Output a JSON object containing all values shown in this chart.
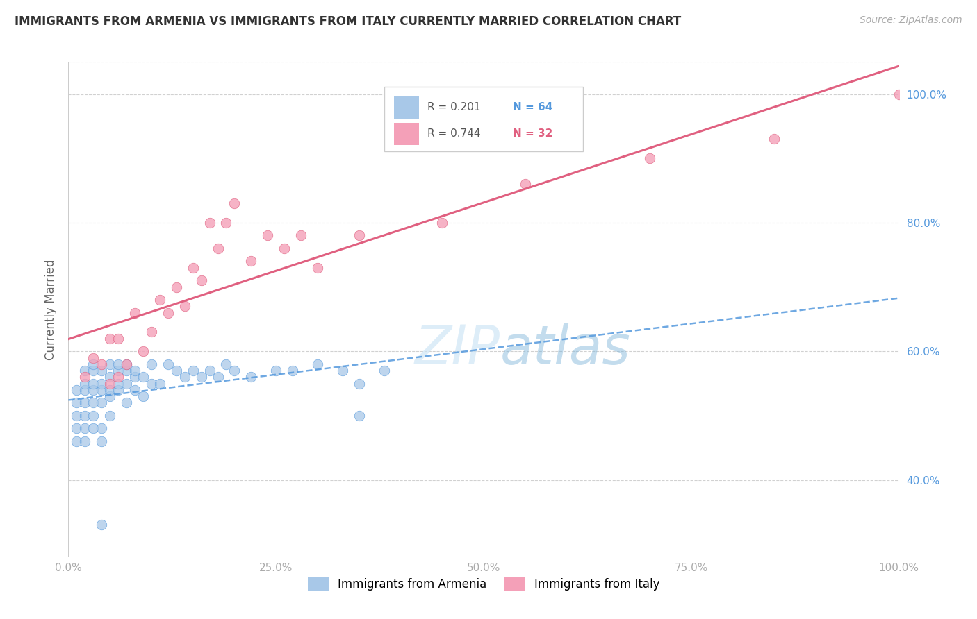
{
  "title": "IMMIGRANTS FROM ARMENIA VS IMMIGRANTS FROM ITALY CURRENTLY MARRIED CORRELATION CHART",
  "source": "Source: ZipAtlas.com",
  "ylabel": "Currently Married",
  "legend_label1": "Immigrants from Armenia",
  "legend_label2": "Immigrants from Italy",
  "legend_r1": "R = 0.201",
  "legend_n1": "N = 64",
  "legend_r2": "R = 0.744",
  "legend_n2": "N = 32",
  "color_armenia": "#a8c8e8",
  "color_italy": "#f4a0b8",
  "color_line_armenia": "#5599dd",
  "color_line_italy": "#e06080",
  "xlim": [
    0.0,
    1.0
  ],
  "ylim": [
    0.28,
    1.05
  ],
  "yticks": [
    0.4,
    0.6,
    0.8,
    1.0
  ],
  "ytick_labels": [
    "40.0%",
    "60.0%",
    "80.0%",
    "100.0%"
  ],
  "xticks": [
    0.0,
    0.25,
    0.5,
    0.75,
    1.0
  ],
  "xtick_labels": [
    "0.0%",
    "25.0%",
    "50.0%",
    "75.0%",
    "100.0%"
  ],
  "armenia_x": [
    0.01,
    0.01,
    0.01,
    0.01,
    0.01,
    0.02,
    0.02,
    0.02,
    0.02,
    0.02,
    0.02,
    0.02,
    0.03,
    0.03,
    0.03,
    0.03,
    0.03,
    0.03,
    0.03,
    0.04,
    0.04,
    0.04,
    0.04,
    0.04,
    0.04,
    0.05,
    0.05,
    0.05,
    0.05,
    0.05,
    0.06,
    0.06,
    0.06,
    0.06,
    0.07,
    0.07,
    0.07,
    0.07,
    0.08,
    0.08,
    0.08,
    0.09,
    0.09,
    0.1,
    0.1,
    0.11,
    0.12,
    0.13,
    0.14,
    0.15,
    0.16,
    0.17,
    0.18,
    0.19,
    0.2,
    0.22,
    0.25,
    0.27,
    0.3,
    0.33,
    0.35,
    0.38,
    0.04,
    0.35
  ],
  "armenia_y": [
    0.5,
    0.52,
    0.54,
    0.46,
    0.48,
    0.5,
    0.52,
    0.54,
    0.46,
    0.48,
    0.55,
    0.57,
    0.5,
    0.52,
    0.54,
    0.55,
    0.57,
    0.58,
    0.48,
    0.52,
    0.54,
    0.55,
    0.57,
    0.46,
    0.48,
    0.53,
    0.54,
    0.56,
    0.58,
    0.5,
    0.54,
    0.55,
    0.57,
    0.58,
    0.52,
    0.55,
    0.57,
    0.58,
    0.54,
    0.56,
    0.57,
    0.53,
    0.56,
    0.55,
    0.58,
    0.55,
    0.58,
    0.57,
    0.56,
    0.57,
    0.56,
    0.57,
    0.56,
    0.58,
    0.57,
    0.56,
    0.57,
    0.57,
    0.58,
    0.57,
    0.55,
    0.57,
    0.33,
    0.5
  ],
  "italy_x": [
    0.02,
    0.03,
    0.04,
    0.05,
    0.05,
    0.06,
    0.06,
    0.07,
    0.08,
    0.09,
    0.1,
    0.11,
    0.12,
    0.13,
    0.14,
    0.15,
    0.16,
    0.17,
    0.18,
    0.19,
    0.2,
    0.22,
    0.24,
    0.26,
    0.28,
    0.3,
    0.35,
    0.45,
    0.55,
    0.7,
    0.85,
    1.0
  ],
  "italy_y": [
    0.56,
    0.59,
    0.58,
    0.55,
    0.62,
    0.56,
    0.62,
    0.58,
    0.66,
    0.6,
    0.63,
    0.68,
    0.66,
    0.7,
    0.67,
    0.73,
    0.71,
    0.8,
    0.76,
    0.8,
    0.83,
    0.74,
    0.78,
    0.76,
    0.78,
    0.73,
    0.78,
    0.8,
    0.86,
    0.9,
    0.93,
    1.0
  ]
}
